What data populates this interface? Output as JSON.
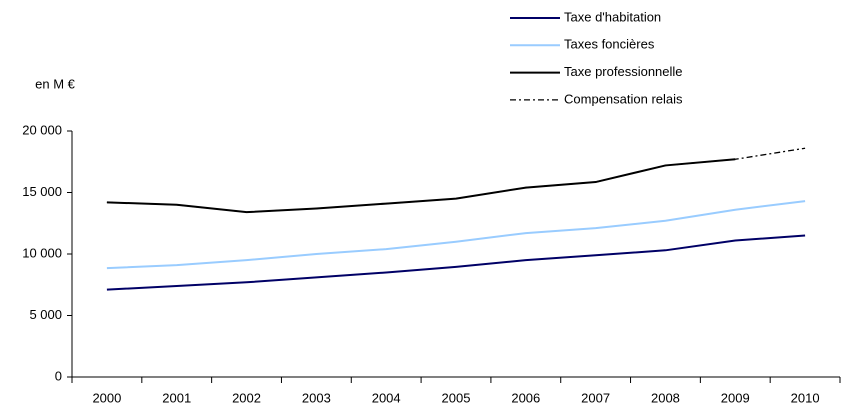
{
  "chart_data": {
    "type": "line",
    "y_axis_label": "en M €",
    "categories": [
      "2000",
      "2001",
      "2002",
      "2003",
      "2004",
      "2005",
      "2006",
      "2007",
      "2008",
      "2009",
      "2010"
    ],
    "series": [
      {
        "name": "Taxe d'habitation",
        "color": "#000066",
        "dash": "solid",
        "values": [
          7100,
          7400,
          7700,
          8100,
          8500,
          8950,
          9500,
          9900,
          10300,
          11100,
          11500
        ]
      },
      {
        "name": "Taxes foncières",
        "color": "#99ccff",
        "dash": "solid",
        "values": [
          8850,
          9100,
          9500,
          10000,
          10400,
          11000,
          11700,
          12100,
          12700,
          13600,
          14300
        ]
      },
      {
        "name": "Taxe professionnelle",
        "color": "#000000",
        "dash": "solid",
        "values": [
          14200,
          14000,
          13400,
          13700,
          14100,
          14500,
          15400,
          15850,
          17200,
          17700,
          null
        ]
      },
      {
        "name": "Compensation relais",
        "color": "#000000",
        "dash": "dashdot",
        "values": [
          14200,
          14000,
          13400,
          13700,
          14100,
          14500,
          15400,
          15850,
          17200,
          17700,
          18600
        ]
      }
    ],
    "ylim": [
      0,
      20000
    ],
    "yticks": [
      0,
      {
        "value": 5000,
        "label": "5 000"
      },
      {
        "value": 10000,
        "label": "10 000"
      },
      {
        "value": 15000,
        "label": "15 000"
      },
      {
        "value": 20000,
        "label": "20 000"
      }
    ],
    "grid": false,
    "legend": "top-right"
  }
}
